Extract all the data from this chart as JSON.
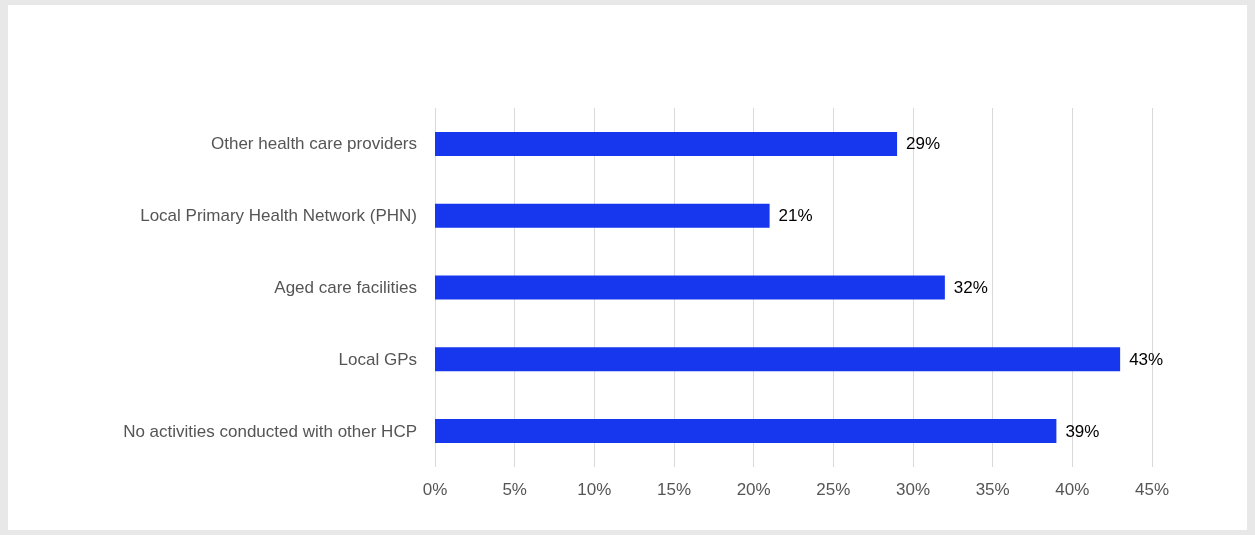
{
  "chart_data": {
    "type": "bar",
    "orientation": "horizontal",
    "categories": [
      "Other health care providers",
      "Local Primary Health Network (PHN)",
      "Aged care facilities",
      "Local GPs",
      "No activities conducted with other HCP"
    ],
    "values": [
      29,
      21,
      32,
      43,
      39
    ],
    "value_labels": [
      "29%",
      "21%",
      "32%",
      "43%",
      "39%"
    ],
    "color": "#1637ee",
    "xlim": [
      0,
      45
    ],
    "xticks": [
      {
        "value": 0,
        "label": "0%"
      },
      {
        "value": 5,
        "label": "5%"
      },
      {
        "value": 10,
        "label": "10%"
      },
      {
        "value": 15,
        "label": "15%"
      },
      {
        "value": 20,
        "label": "20%"
      },
      {
        "value": 25,
        "label": "25%"
      },
      {
        "value": 30,
        "label": "30%"
      },
      {
        "value": 35,
        "label": "35%"
      },
      {
        "value": 40,
        "label": "40%"
      },
      {
        "value": 45,
        "label": "45%"
      }
    ],
    "grid": "x"
  }
}
